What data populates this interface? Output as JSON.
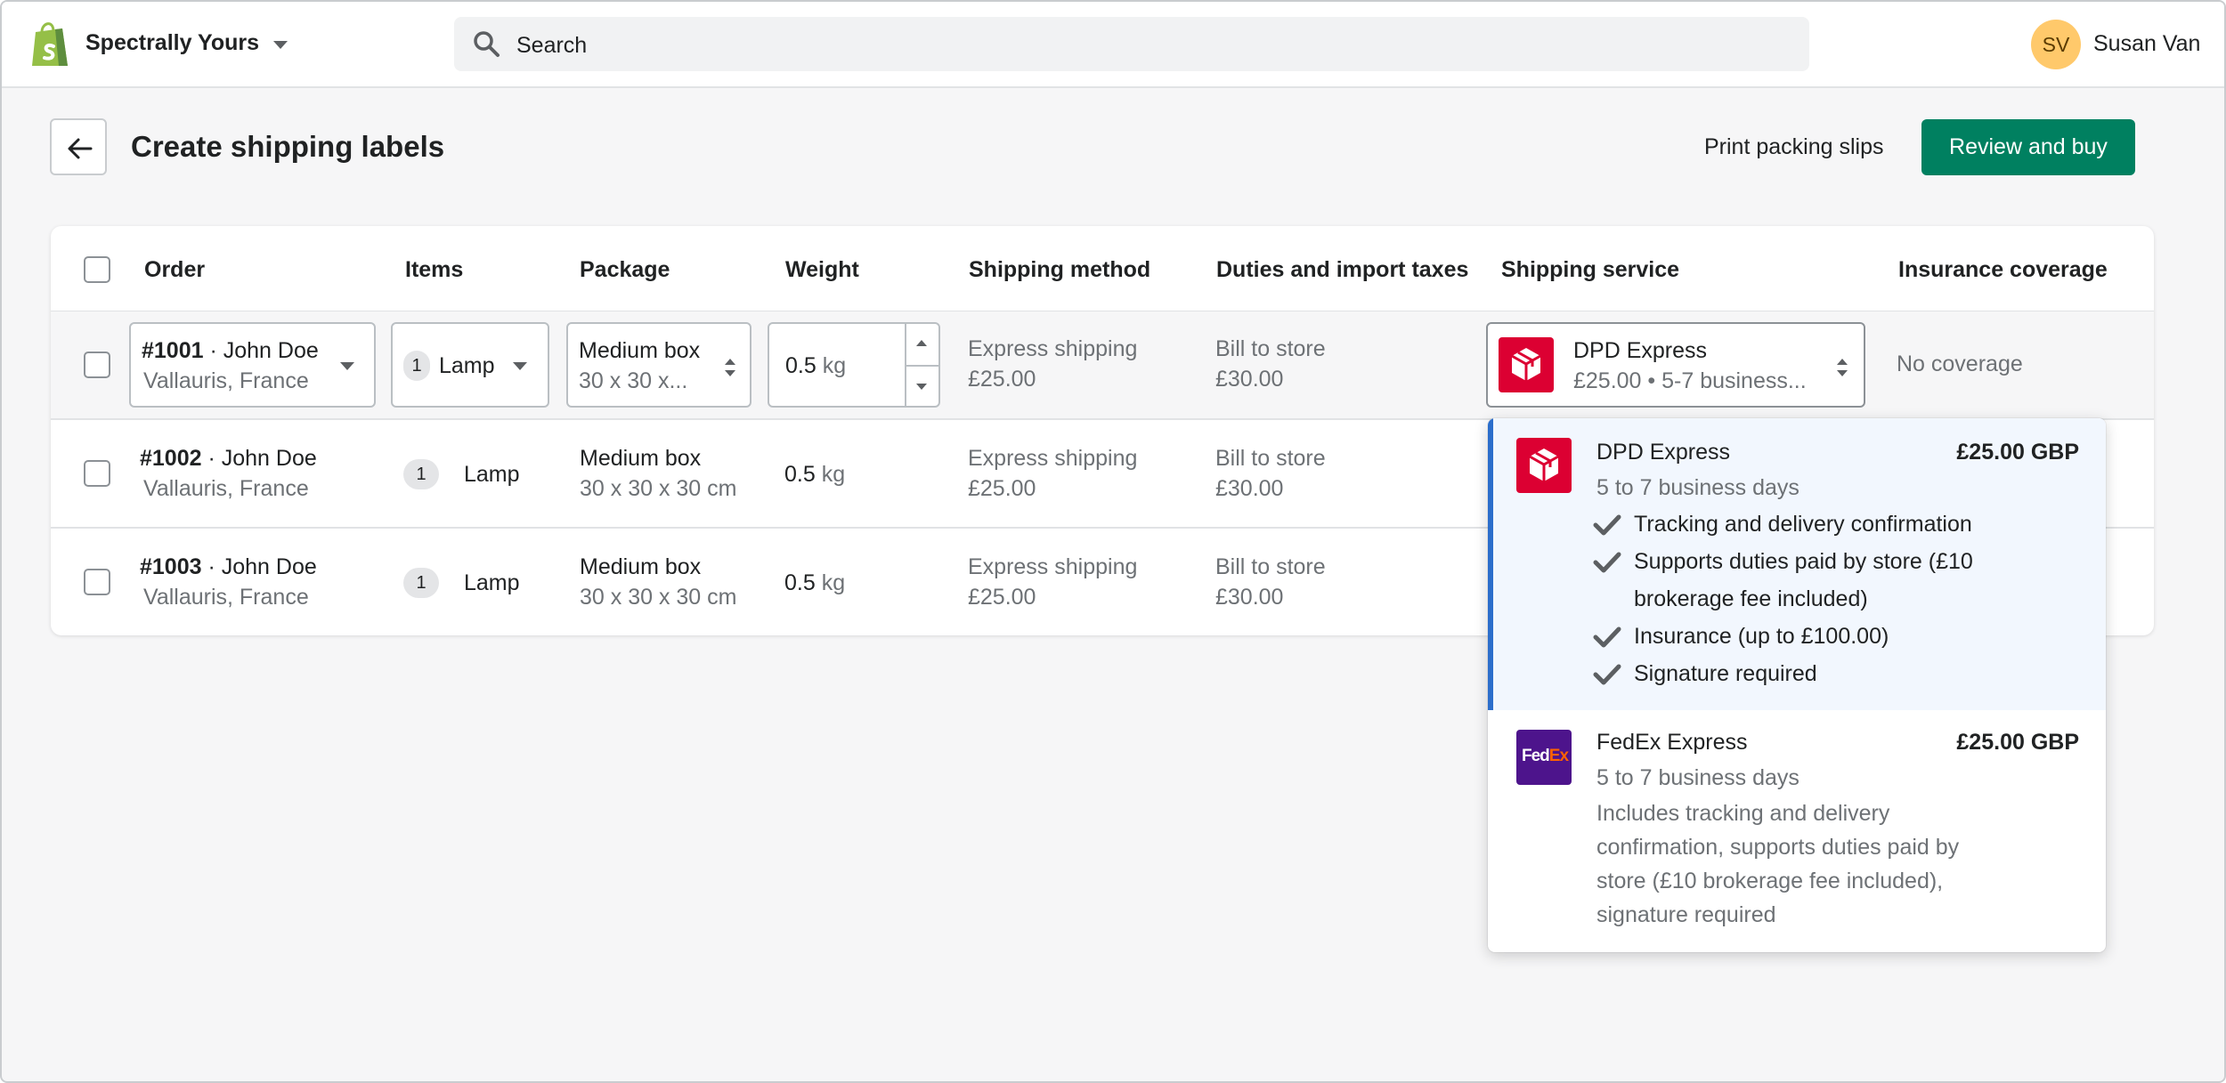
{
  "store": {
    "name": "Spectrally Yours"
  },
  "search": {
    "placeholder": "Search"
  },
  "user": {
    "initials": "SV",
    "name": "Susan Van"
  },
  "page": {
    "title": "Create shipping labels",
    "print_label": "Print packing slips",
    "buy_label": "Review and buy"
  },
  "table": {
    "headers": {
      "order": "Order",
      "items": "Items",
      "package": "Package",
      "weight": "Weight",
      "method": "Shipping method",
      "duties": "Duties and import taxes",
      "service": "Shipping service",
      "insurance": "Insurance coverage"
    },
    "rows": [
      {
        "order_id": "#1001",
        "customer": " · John Doe",
        "location": "Vallauris, France",
        "item_count": "1",
        "item_name": "Lamp",
        "package_name": "Medium box",
        "package_dims": "30 x 30 x...",
        "weight_value": "0.5",
        "weight_unit": "kg",
        "method_name": "Express shipping",
        "method_price": "£25.00",
        "duties_name": "Bill to store",
        "duties_price": "£30.00",
        "service_name": "DPD Express",
        "service_detail": "£25.00 • 5-7 business...",
        "insurance": "No coverage"
      },
      {
        "order_id": "#1002",
        "customer": " · John Doe",
        "location": "Vallauris, France",
        "item_count": "1",
        "item_name": "Lamp",
        "package_name": "Medium box",
        "package_dims": "30 x 30 x 30 cm",
        "weight_value": "0.5",
        "weight_unit": "kg",
        "method_name": "Express shipping",
        "method_price": "£25.00",
        "duties_name": "Bill to store",
        "duties_price": "£30.00"
      },
      {
        "order_id": "#1003",
        "customer": " · John Doe",
        "location": "Vallauris, France",
        "item_count": "1",
        "item_name": "Lamp",
        "package_name": "Medium box",
        "package_dims": "30 x 30 x 30 cm",
        "weight_value": "0.5",
        "weight_unit": "kg",
        "method_name": "Express shipping",
        "method_price": "£25.00",
        "duties_name": "Bill to store",
        "duties_price": "£30.00"
      }
    ]
  },
  "dropdown": {
    "options": [
      {
        "carrier": "DPD Express",
        "price": "£25.00 GBP",
        "time": "5 to 7 business days",
        "features": [
          "Tracking and delivery confirmation",
          "Supports duties paid by store (£10",
          "brokerage fee included)",
          "Insurance (up to £100.00)",
          "Signature required"
        ],
        "selected": true
      },
      {
        "carrier": "FedEx Express",
        "logo_text_1": "Fed",
        "logo_text_2": "Ex",
        "price": "£25.00 GBP",
        "time": "5 to 7 business days",
        "description": [
          "Includes tracking and delivery",
          "confirmation, supports duties paid by",
          "store (£10 brokerage fee included),",
          "signature required"
        ]
      }
    ]
  },
  "colors": {
    "primary": "#008060",
    "dpd": "#dc0032",
    "fedex_purple": "#4d148c",
    "fedex_orange": "#ff6200",
    "selected_bar": "#2c6ecb",
    "avatar": "#ffc96b"
  },
  "icons": {
    "logo": "shopify-bag-icon",
    "search": "search-icon",
    "back": "arrow-left-icon",
    "check": "check-icon"
  }
}
